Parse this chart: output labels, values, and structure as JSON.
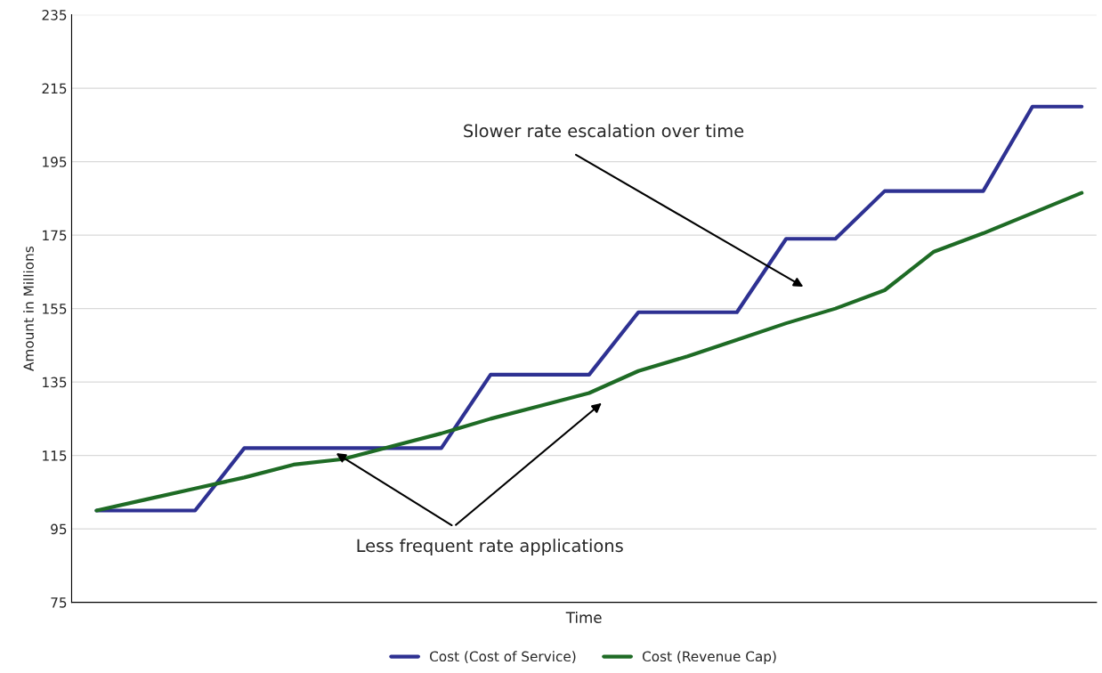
{
  "chart_data": {
    "type": "line",
    "xlabel": "Time",
    "ylabel": "Amount in Millions",
    "categories": [
      null,
      null,
      null,
      null,
      null,
      null,
      null,
      null,
      null,
      null,
      null,
      null,
      null,
      null,
      null,
      null,
      null,
      null,
      null,
      null,
      null
    ],
    "series": [
      {
        "name": "Cost (Cost of Service)",
        "color": "#2e3192",
        "values": [
          100,
          100,
          100,
          117,
          117,
          117,
          117,
          117,
          137,
          137,
          137,
          154,
          154,
          154,
          174,
          174,
          187,
          187,
          187,
          210,
          210
        ]
      },
      {
        "name": "Cost (Revenue Cap)",
        "color": "#1e6b25",
        "values": [
          100,
          103,
          106,
          109,
          112.5,
          114,
          117.5,
          121,
          125,
          128.5,
          132,
          138,
          142,
          146.5,
          151,
          155,
          160,
          170.5,
          175.5,
          181,
          186.5
        ]
      }
    ],
    "ylim": [
      75,
      235
    ],
    "yticks": [
      75,
      95,
      115,
      135,
      155,
      175,
      195,
      215,
      235
    ],
    "grid": "y",
    "legend": "bottom",
    "marker": "none",
    "line_style": "solid",
    "annotations": [
      "Slower rate escalation over time",
      "Less frequent rate applications"
    ]
  }
}
